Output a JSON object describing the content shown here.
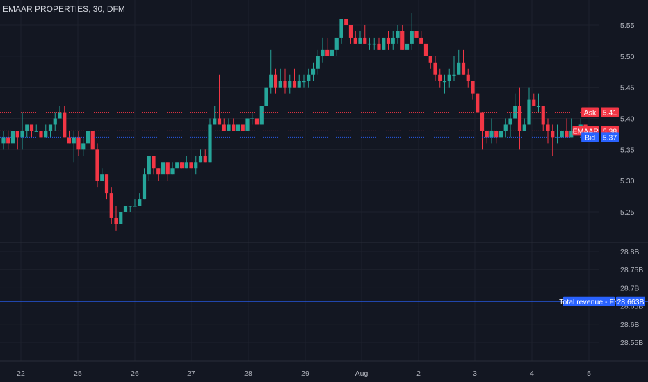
{
  "title": "EMAAR PROPERTIES, 30, DFM",
  "colors": {
    "background": "#131722",
    "up": "#26a69a",
    "down": "#f23645",
    "grid": "#1e222d",
    "axis_text": "#b2b5be",
    "bid": "#2962ff",
    "revenue": "#2962ff"
  },
  "chart_data": [
    {
      "type": "candlestick",
      "title": "EMAAR PROPERTIES, 30, DFM",
      "x_ticks": [
        "22",
        "25",
        "26",
        "27",
        "28",
        "29",
        "Aug",
        "2",
        "3",
        "4",
        "5"
      ],
      "ylim": [
        5.2,
        5.57
      ],
      "y_ticks": [
        "5.55",
        "5.50",
        "5.45",
        "5.40",
        "5.35",
        "5.30",
        "5.25"
      ],
      "grid": true,
      "candles": [
        [
          5.36,
          5.38,
          5.35,
          5.37
        ],
        [
          5.37,
          5.38,
          5.35,
          5.36
        ],
        [
          5.36,
          5.38,
          5.35,
          5.38
        ],
        [
          5.38,
          5.38,
          5.35,
          5.37
        ],
        [
          5.37,
          5.41,
          5.35,
          5.38
        ],
        [
          5.38,
          5.39,
          5.37,
          5.39
        ],
        [
          5.39,
          5.39,
          5.37,
          5.38
        ],
        [
          5.38,
          5.39,
          5.38,
          5.38
        ],
        [
          5.38,
          5.38,
          5.37,
          5.37
        ],
        [
          5.37,
          5.39,
          5.37,
          5.38
        ],
        [
          5.38,
          5.39,
          5.37,
          5.39
        ],
        [
          5.39,
          5.41,
          5.38,
          5.4
        ],
        [
          5.4,
          5.42,
          5.4,
          5.41
        ],
        [
          5.41,
          5.42,
          5.37,
          5.37
        ],
        [
          5.37,
          5.38,
          5.36,
          5.36
        ],
        [
          5.36,
          5.38,
          5.33,
          5.37
        ],
        [
          5.37,
          5.38,
          5.34,
          5.35
        ],
        [
          5.35,
          5.37,
          5.34,
          5.36
        ],
        [
          5.36,
          5.38,
          5.35,
          5.38
        ],
        [
          5.38,
          5.38,
          5.35,
          5.35
        ],
        [
          5.35,
          5.36,
          5.29,
          5.3
        ],
        [
          5.3,
          5.32,
          5.3,
          5.31
        ],
        [
          5.31,
          5.31,
          5.27,
          5.28
        ],
        [
          5.28,
          5.29,
          5.23,
          5.24
        ],
        [
          5.24,
          5.26,
          5.22,
          5.23
        ],
        [
          5.23,
          5.25,
          5.23,
          5.25
        ],
        [
          5.25,
          5.26,
          5.25,
          5.26
        ],
        [
          5.26,
          5.26,
          5.25,
          5.26
        ],
        [
          5.26,
          5.27,
          5.26,
          5.26
        ],
        [
          5.26,
          5.28,
          5.26,
          5.27
        ],
        [
          5.27,
          5.32,
          5.27,
          5.31
        ],
        [
          5.31,
          5.34,
          5.3,
          5.34
        ],
        [
          5.34,
          5.34,
          5.31,
          5.32
        ],
        [
          5.32,
          5.32,
          5.3,
          5.31
        ],
        [
          5.31,
          5.33,
          5.3,
          5.33
        ],
        [
          5.33,
          5.33,
          5.3,
          5.31
        ],
        [
          5.31,
          5.33,
          5.31,
          5.32
        ],
        [
          5.32,
          5.33,
          5.32,
          5.33
        ],
        [
          5.33,
          5.33,
          5.32,
          5.32
        ],
        [
          5.32,
          5.34,
          5.32,
          5.33
        ],
        [
          5.33,
          5.33,
          5.32,
          5.32
        ],
        [
          5.32,
          5.34,
          5.31,
          5.33
        ],
        [
          5.33,
          5.35,
          5.33,
          5.34
        ],
        [
          5.34,
          5.35,
          5.33,
          5.33
        ],
        [
          5.33,
          5.4,
          5.33,
          5.39
        ],
        [
          5.39,
          5.42,
          5.39,
          5.4
        ],
        [
          5.4,
          5.47,
          5.39,
          5.39
        ],
        [
          5.39,
          5.4,
          5.38,
          5.38
        ],
        [
          5.38,
          5.4,
          5.38,
          5.39
        ],
        [
          5.39,
          5.4,
          5.38,
          5.38
        ],
        [
          5.38,
          5.4,
          5.38,
          5.39
        ],
        [
          5.39,
          5.39,
          5.38,
          5.38
        ],
        [
          5.38,
          5.4,
          5.38,
          5.4
        ],
        [
          5.4,
          5.41,
          5.39,
          5.4
        ],
        [
          5.4,
          5.4,
          5.38,
          5.39
        ],
        [
          5.39,
          5.42,
          5.39,
          5.42
        ],
        [
          5.42,
          5.45,
          5.42,
          5.45
        ],
        [
          5.45,
          5.51,
          5.44,
          5.47
        ],
        [
          5.47,
          5.48,
          5.44,
          5.45
        ],
        [
          5.45,
          5.48,
          5.45,
          5.46
        ],
        [
          5.46,
          5.48,
          5.44,
          5.45
        ],
        [
          5.45,
          5.47,
          5.44,
          5.46
        ],
        [
          5.46,
          5.48,
          5.45,
          5.45
        ],
        [
          5.45,
          5.47,
          5.45,
          5.46
        ],
        [
          5.46,
          5.47,
          5.45,
          5.46
        ],
        [
          5.46,
          5.48,
          5.45,
          5.47
        ],
        [
          5.47,
          5.49,
          5.46,
          5.48
        ],
        [
          5.48,
          5.51,
          5.47,
          5.5
        ],
        [
          5.5,
          5.53,
          5.49,
          5.51
        ],
        [
          5.51,
          5.53,
          5.5,
          5.5
        ],
        [
          5.5,
          5.52,
          5.49,
          5.51
        ],
        [
          5.51,
          5.53,
          5.5,
          5.53
        ],
        [
          5.53,
          5.56,
          5.52,
          5.56
        ],
        [
          5.56,
          5.56,
          5.55,
          5.55
        ],
        [
          5.55,
          5.55,
          5.52,
          5.53
        ],
        [
          5.53,
          5.54,
          5.52,
          5.52
        ],
        [
          5.52,
          5.54,
          5.52,
          5.53
        ],
        [
          5.53,
          5.55,
          5.52,
          5.52
        ],
        [
          5.52,
          5.53,
          5.51,
          5.52
        ],
        [
          5.52,
          5.53,
          5.51,
          5.52
        ],
        [
          5.52,
          5.53,
          5.51,
          5.51
        ],
        [
          5.51,
          5.53,
          5.51,
          5.53
        ],
        [
          5.53,
          5.54,
          5.51,
          5.52
        ],
        [
          5.52,
          5.54,
          5.51,
          5.53
        ],
        [
          5.53,
          5.55,
          5.52,
          5.54
        ],
        [
          5.54,
          5.55,
          5.51,
          5.51
        ],
        [
          5.51,
          5.53,
          5.51,
          5.52
        ],
        [
          5.52,
          5.57,
          5.51,
          5.54
        ],
        [
          5.54,
          5.54,
          5.53,
          5.53
        ],
        [
          5.53,
          5.54,
          5.52,
          5.52
        ],
        [
          5.52,
          5.53,
          5.5,
          5.5
        ],
        [
          5.5,
          5.5,
          5.48,
          5.49
        ],
        [
          5.49,
          5.5,
          5.46,
          5.47
        ],
        [
          5.47,
          5.48,
          5.45,
          5.46
        ],
        [
          5.46,
          5.47,
          5.44,
          5.46
        ],
        [
          5.46,
          5.48,
          5.45,
          5.47
        ],
        [
          5.47,
          5.5,
          5.46,
          5.47
        ],
        [
          5.47,
          5.51,
          5.47,
          5.49
        ],
        [
          5.49,
          5.51,
          5.47,
          5.47
        ],
        [
          5.47,
          5.48,
          5.45,
          5.46
        ],
        [
          5.46,
          5.46,
          5.43,
          5.44
        ],
        [
          5.44,
          5.44,
          5.41,
          5.41
        ],
        [
          5.41,
          5.41,
          5.35,
          5.38
        ],
        [
          5.38,
          5.38,
          5.36,
          5.37
        ],
        [
          5.37,
          5.4,
          5.36,
          5.38
        ],
        [
          5.38,
          5.38,
          5.36,
          5.37
        ],
        [
          5.37,
          5.39,
          5.37,
          5.38
        ],
        [
          5.38,
          5.4,
          5.37,
          5.39
        ],
        [
          5.39,
          5.41,
          5.37,
          5.4
        ],
        [
          5.4,
          5.44,
          5.4,
          5.42
        ],
        [
          5.42,
          5.45,
          5.35,
          5.38
        ],
        [
          5.38,
          5.4,
          5.38,
          5.39
        ],
        [
          5.39,
          5.45,
          5.39,
          5.43
        ],
        [
          5.43,
          5.44,
          5.42,
          5.42
        ],
        [
          5.42,
          5.44,
          5.41,
          5.42
        ],
        [
          5.42,
          5.42,
          5.38,
          5.39
        ],
        [
          5.39,
          5.4,
          5.36,
          5.38
        ],
        [
          5.38,
          5.39,
          5.34,
          5.37
        ],
        [
          5.37,
          5.39,
          5.36,
          5.37
        ],
        [
          5.37,
          5.38,
          5.37,
          5.38
        ],
        [
          5.38,
          5.4,
          5.37,
          5.37
        ],
        [
          5.37,
          5.4,
          5.37,
          5.38
        ],
        [
          5.38,
          5.39,
          5.37,
          5.38
        ],
        [
          5.38,
          5.4,
          5.37,
          5.39
        ],
        [
          5.39,
          5.39,
          5.37,
          5.38
        ]
      ],
      "price_lines": [
        {
          "label": "Ask",
          "value": "5.41",
          "color": "#f23645"
        },
        {
          "label": "EMAAR",
          "value": "5.38",
          "color": "#f23645"
        },
        {
          "label": "Bid",
          "value": "5.37",
          "color": "#2962ff"
        }
      ]
    },
    {
      "type": "line",
      "title": "Total revenue - FY",
      "ylim": [
        28.51,
        28.9
      ],
      "y_ticks": [
        "28.8B",
        "28.75B",
        "28.7B",
        "28.65B",
        "28.6B",
        "28.55B"
      ],
      "series": [
        {
          "name": "Total revenue - FY",
          "value": 28.663,
          "label": "28.663B",
          "color": "#2962ff"
        }
      ]
    }
  ]
}
